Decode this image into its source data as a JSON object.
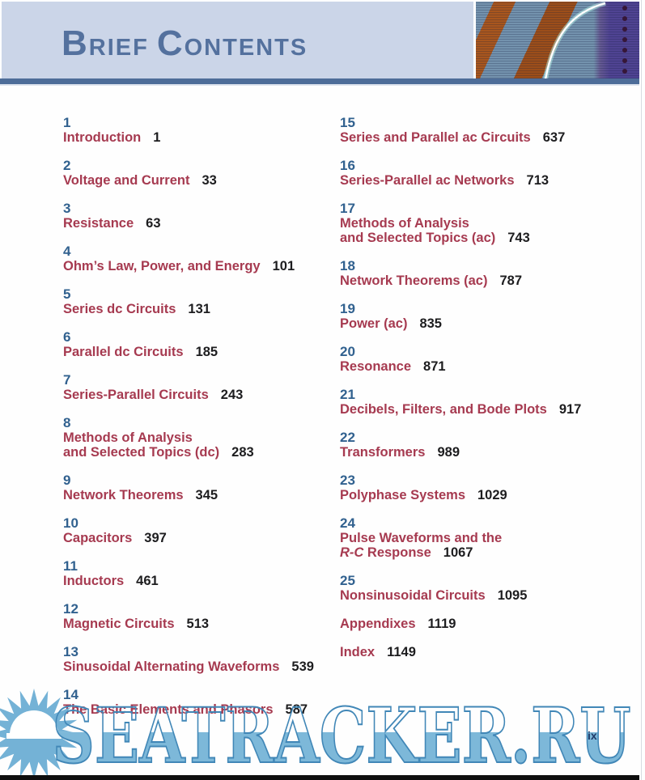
{
  "header": {
    "title_word1_cap": "B",
    "title_word1_rest": "RIEF",
    "title_word2_cap": "C",
    "title_word2_rest": "ONTENTS"
  },
  "colors": {
    "header_bg": "#cbd5e8",
    "header_title": "#54719e",
    "divider_bar": "#4e6d99",
    "chapter_number": "#31618f",
    "chapter_title": "#a63a50",
    "page_ref": "#1d1d1f",
    "watermark_fill": "#7db8d9",
    "watermark_outline": "#4187b7",
    "folio": "#1e3a68",
    "footer_bar": "#0e0e0e"
  },
  "toc": {
    "left": [
      {
        "num": "1",
        "lines": [
          {
            "text": "Introduction"
          }
        ],
        "page": "1"
      },
      {
        "num": "2",
        "lines": [
          {
            "text": "Voltage and Current"
          }
        ],
        "page": "33"
      },
      {
        "num": "3",
        "lines": [
          {
            "text": "Resistance"
          }
        ],
        "page": "63"
      },
      {
        "num": "4",
        "lines": [
          {
            "text": "Ohm’s Law, Power, and Energy"
          }
        ],
        "page": "101"
      },
      {
        "num": "5",
        "lines": [
          {
            "text": "Series dc Circuits"
          }
        ],
        "page": "131"
      },
      {
        "num": "6",
        "lines": [
          {
            "text": "Parallel dc Circuits"
          }
        ],
        "page": "185"
      },
      {
        "num": "7",
        "lines": [
          {
            "text": "Series-Parallel Circuits"
          }
        ],
        "page": "243"
      },
      {
        "num": "8",
        "lines": [
          {
            "text": "Methods of Analysis"
          },
          {
            "text": "and Selected Topics (dc)"
          }
        ],
        "page": "283"
      },
      {
        "num": "9",
        "lines": [
          {
            "text": "Network Theorems"
          }
        ],
        "page": "345"
      },
      {
        "num": "10",
        "lines": [
          {
            "text": "Capacitors"
          }
        ],
        "page": "397"
      },
      {
        "num": "11",
        "lines": [
          {
            "text": "Inductors"
          }
        ],
        "page": "461"
      },
      {
        "num": "12",
        "lines": [
          {
            "text": "Magnetic Circuits"
          }
        ],
        "page": "513"
      },
      {
        "num": "13",
        "lines": [
          {
            "text": "Sinusoidal Alternating Waveforms"
          }
        ],
        "page": "539"
      },
      {
        "num": "14",
        "lines": [
          {
            "text": "The Basic Elements and Phasors"
          }
        ],
        "page": "587"
      }
    ],
    "right": [
      {
        "num": "15",
        "lines": [
          {
            "text": "Series and Parallel ac Circuits"
          }
        ],
        "page": "637"
      },
      {
        "num": "16",
        "lines": [
          {
            "text": "Series-Parallel ac Networks"
          }
        ],
        "page": "713"
      },
      {
        "num": "17",
        "lines": [
          {
            "text": "Methods of Analysis"
          },
          {
            "text": "and Selected Topics (ac)"
          }
        ],
        "page": "743"
      },
      {
        "num": "18",
        "lines": [
          {
            "text": "Network Theorems (ac)"
          }
        ],
        "page": "787"
      },
      {
        "num": "19",
        "lines": [
          {
            "text": "Power (ac)"
          }
        ],
        "page": "835"
      },
      {
        "num": "20",
        "lines": [
          {
            "text": "Resonance"
          }
        ],
        "page": "871"
      },
      {
        "num": "21",
        "lines": [
          {
            "text": "Decibels, Filters, and Bode Plots"
          }
        ],
        "page": "917"
      },
      {
        "num": "22",
        "lines": [
          {
            "text": "Transformers"
          }
        ],
        "page": "989"
      },
      {
        "num": "23",
        "lines": [
          {
            "text": "Polyphase Systems"
          }
        ],
        "page": "1029"
      },
      {
        "num": "24",
        "lines": [
          {
            "text": "Pulse Waveforms and the"
          },
          {
            "italic": "R-C",
            "text": " Response"
          }
        ],
        "page": "1067"
      },
      {
        "num": "25",
        "lines": [
          {
            "text": "Nonsinusoidal Circuits"
          }
        ],
        "page": "1095"
      },
      {
        "num": "",
        "lines": [
          {
            "text": "Appendixes"
          }
        ],
        "page": "1119"
      },
      {
        "num": "",
        "lines": [
          {
            "text": "Index"
          }
        ],
        "page": "1149"
      }
    ]
  },
  "watermark": {
    "text": "SEATRACKER.RU",
    "sun_icon": "sun-burst-icon"
  },
  "folio": {
    "page_number": "ix"
  }
}
